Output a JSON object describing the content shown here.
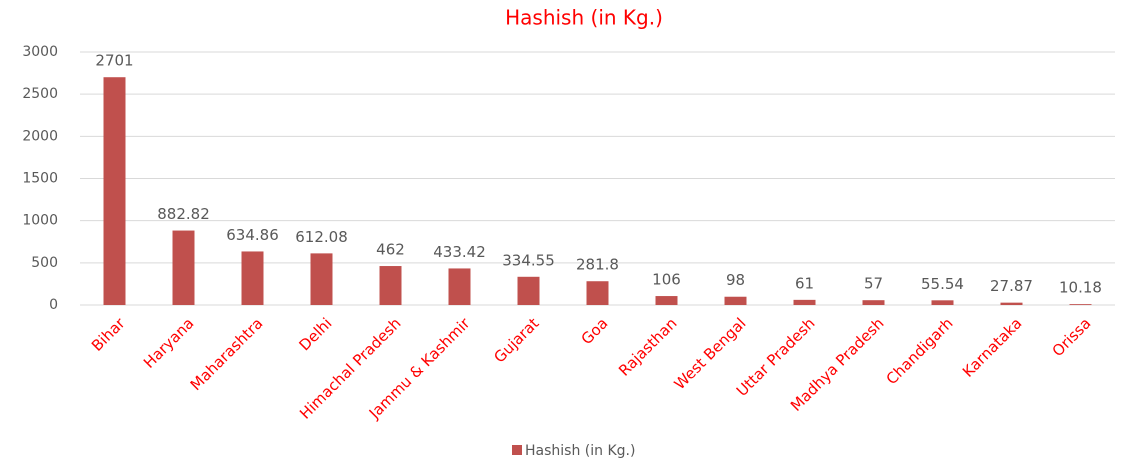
{
  "chart_data": {
    "type": "bar",
    "title": "Hashish (in Kg.)",
    "categories": [
      "Bihar",
      "Haryana",
      "Maharashtra",
      "Delhi",
      "Himachal Pradesh",
      "Jammu & Kashmir",
      "Gujarat",
      "Goa",
      "Rajasthan",
      "West Bengal",
      "Uttar Pradesh",
      "Madhya Pradesh",
      "Chandigarh",
      "Karnataka",
      "Orissa"
    ],
    "series": [
      {
        "name": "Hashish (in Kg.)",
        "color": "#c0504d",
        "values": [
          2701,
          882.82,
          634.86,
          612.08,
          462,
          433.42,
          334.55,
          281.8,
          106,
          98,
          61,
          57,
          55.54,
          27.87,
          10.18
        ]
      }
    ],
    "ylim": [
      0,
      3000
    ],
    "yticks": [
      0,
      500,
      1000,
      1500,
      2000,
      2500,
      3000
    ],
    "grid": true,
    "legend": "bottom"
  }
}
